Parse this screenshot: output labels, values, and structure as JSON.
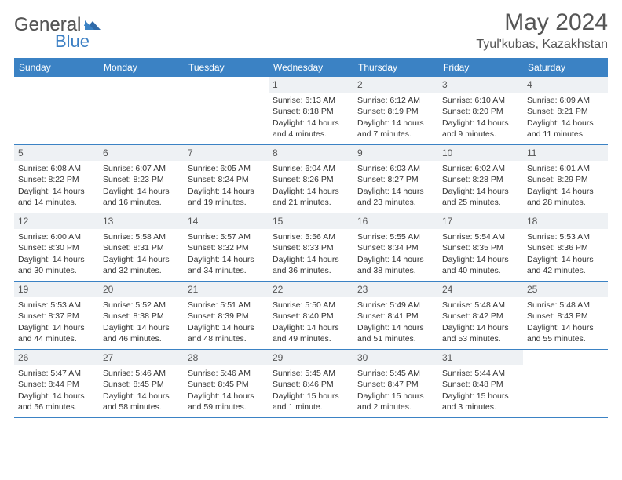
{
  "brand": {
    "part1": "General",
    "part2": "Blue"
  },
  "title": "May 2024",
  "location": "Tyul'kubas, Kazakhstan",
  "colors": {
    "header_bg": "#3b82c4",
    "header_text": "#ffffff",
    "date_bg": "#eef1f4",
    "border": "#3b82c4",
    "body_text": "#333333",
    "title_text": "#555555"
  },
  "day_headers": [
    "Sunday",
    "Monday",
    "Tuesday",
    "Wednesday",
    "Thursday",
    "Friday",
    "Saturday"
  ],
  "weeks": [
    [
      {
        "empty": true
      },
      {
        "empty": true
      },
      {
        "empty": true
      },
      {
        "date": "1",
        "sunrise": "Sunrise: 6:13 AM",
        "sunset": "Sunset: 8:18 PM",
        "daylight": "Daylight: 14 hours and 4 minutes."
      },
      {
        "date": "2",
        "sunrise": "Sunrise: 6:12 AM",
        "sunset": "Sunset: 8:19 PM",
        "daylight": "Daylight: 14 hours and 7 minutes."
      },
      {
        "date": "3",
        "sunrise": "Sunrise: 6:10 AM",
        "sunset": "Sunset: 8:20 PM",
        "daylight": "Daylight: 14 hours and 9 minutes."
      },
      {
        "date": "4",
        "sunrise": "Sunrise: 6:09 AM",
        "sunset": "Sunset: 8:21 PM",
        "daylight": "Daylight: 14 hours and 11 minutes."
      }
    ],
    [
      {
        "date": "5",
        "sunrise": "Sunrise: 6:08 AM",
        "sunset": "Sunset: 8:22 PM",
        "daylight": "Daylight: 14 hours and 14 minutes."
      },
      {
        "date": "6",
        "sunrise": "Sunrise: 6:07 AM",
        "sunset": "Sunset: 8:23 PM",
        "daylight": "Daylight: 14 hours and 16 minutes."
      },
      {
        "date": "7",
        "sunrise": "Sunrise: 6:05 AM",
        "sunset": "Sunset: 8:24 PM",
        "daylight": "Daylight: 14 hours and 19 minutes."
      },
      {
        "date": "8",
        "sunrise": "Sunrise: 6:04 AM",
        "sunset": "Sunset: 8:26 PM",
        "daylight": "Daylight: 14 hours and 21 minutes."
      },
      {
        "date": "9",
        "sunrise": "Sunrise: 6:03 AM",
        "sunset": "Sunset: 8:27 PM",
        "daylight": "Daylight: 14 hours and 23 minutes."
      },
      {
        "date": "10",
        "sunrise": "Sunrise: 6:02 AM",
        "sunset": "Sunset: 8:28 PM",
        "daylight": "Daylight: 14 hours and 25 minutes."
      },
      {
        "date": "11",
        "sunrise": "Sunrise: 6:01 AM",
        "sunset": "Sunset: 8:29 PM",
        "daylight": "Daylight: 14 hours and 28 minutes."
      }
    ],
    [
      {
        "date": "12",
        "sunrise": "Sunrise: 6:00 AM",
        "sunset": "Sunset: 8:30 PM",
        "daylight": "Daylight: 14 hours and 30 minutes."
      },
      {
        "date": "13",
        "sunrise": "Sunrise: 5:58 AM",
        "sunset": "Sunset: 8:31 PM",
        "daylight": "Daylight: 14 hours and 32 minutes."
      },
      {
        "date": "14",
        "sunrise": "Sunrise: 5:57 AM",
        "sunset": "Sunset: 8:32 PM",
        "daylight": "Daylight: 14 hours and 34 minutes."
      },
      {
        "date": "15",
        "sunrise": "Sunrise: 5:56 AM",
        "sunset": "Sunset: 8:33 PM",
        "daylight": "Daylight: 14 hours and 36 minutes."
      },
      {
        "date": "16",
        "sunrise": "Sunrise: 5:55 AM",
        "sunset": "Sunset: 8:34 PM",
        "daylight": "Daylight: 14 hours and 38 minutes."
      },
      {
        "date": "17",
        "sunrise": "Sunrise: 5:54 AM",
        "sunset": "Sunset: 8:35 PM",
        "daylight": "Daylight: 14 hours and 40 minutes."
      },
      {
        "date": "18",
        "sunrise": "Sunrise: 5:53 AM",
        "sunset": "Sunset: 8:36 PM",
        "daylight": "Daylight: 14 hours and 42 minutes."
      }
    ],
    [
      {
        "date": "19",
        "sunrise": "Sunrise: 5:53 AM",
        "sunset": "Sunset: 8:37 PM",
        "daylight": "Daylight: 14 hours and 44 minutes."
      },
      {
        "date": "20",
        "sunrise": "Sunrise: 5:52 AM",
        "sunset": "Sunset: 8:38 PM",
        "daylight": "Daylight: 14 hours and 46 minutes."
      },
      {
        "date": "21",
        "sunrise": "Sunrise: 5:51 AM",
        "sunset": "Sunset: 8:39 PM",
        "daylight": "Daylight: 14 hours and 48 minutes."
      },
      {
        "date": "22",
        "sunrise": "Sunrise: 5:50 AM",
        "sunset": "Sunset: 8:40 PM",
        "daylight": "Daylight: 14 hours and 49 minutes."
      },
      {
        "date": "23",
        "sunrise": "Sunrise: 5:49 AM",
        "sunset": "Sunset: 8:41 PM",
        "daylight": "Daylight: 14 hours and 51 minutes."
      },
      {
        "date": "24",
        "sunrise": "Sunrise: 5:48 AM",
        "sunset": "Sunset: 8:42 PM",
        "daylight": "Daylight: 14 hours and 53 minutes."
      },
      {
        "date": "25",
        "sunrise": "Sunrise: 5:48 AM",
        "sunset": "Sunset: 8:43 PM",
        "daylight": "Daylight: 14 hours and 55 minutes."
      }
    ],
    [
      {
        "date": "26",
        "sunrise": "Sunrise: 5:47 AM",
        "sunset": "Sunset: 8:44 PM",
        "daylight": "Daylight: 14 hours and 56 minutes."
      },
      {
        "date": "27",
        "sunrise": "Sunrise: 5:46 AM",
        "sunset": "Sunset: 8:45 PM",
        "daylight": "Daylight: 14 hours and 58 minutes."
      },
      {
        "date": "28",
        "sunrise": "Sunrise: 5:46 AM",
        "sunset": "Sunset: 8:45 PM",
        "daylight": "Daylight: 14 hours and 59 minutes."
      },
      {
        "date": "29",
        "sunrise": "Sunrise: 5:45 AM",
        "sunset": "Sunset: 8:46 PM",
        "daylight": "Daylight: 15 hours and 1 minute."
      },
      {
        "date": "30",
        "sunrise": "Sunrise: 5:45 AM",
        "sunset": "Sunset: 8:47 PM",
        "daylight": "Daylight: 15 hours and 2 minutes."
      },
      {
        "date": "31",
        "sunrise": "Sunrise: 5:44 AM",
        "sunset": "Sunset: 8:48 PM",
        "daylight": "Daylight: 15 hours and 3 minutes."
      },
      {
        "empty": true
      }
    ]
  ]
}
